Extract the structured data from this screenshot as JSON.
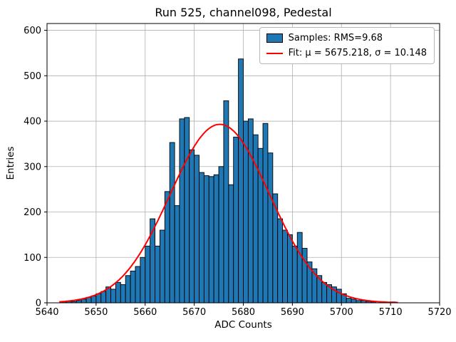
{
  "chart_data": {
    "type": "bar",
    "subtype": "histogram",
    "title": "Run 525, channel098, Pedestal",
    "xlabel": "ADC Counts",
    "ylabel": "Entries",
    "xlim": [
      5640,
      5720
    ],
    "ylim": [
      0,
      615
    ],
    "x_ticks": [
      5640,
      5650,
      5660,
      5670,
      5680,
      5690,
      5700,
      5710,
      5720
    ],
    "y_ticks": [
      0,
      100,
      200,
      300,
      400,
      500,
      600
    ],
    "grid": true,
    "legend_position": "upper right",
    "legend": [
      "Samples: RMS=9.68",
      "Fit: μ = 5675.218, σ = 10.148"
    ],
    "bar_color": "#1f77b4",
    "bar_edge_color": "#000000",
    "fit_color": "#ff0000",
    "grid_color": "#b0b0b0",
    "bin_width": 1,
    "bins_start": 5643,
    "counts": [
      2,
      3,
      3,
      5,
      8,
      12,
      15,
      20,
      25,
      35,
      30,
      45,
      40,
      60,
      70,
      80,
      100,
      125,
      185,
      125,
      160,
      245,
      353,
      214,
      405,
      408,
      337,
      325,
      287,
      280,
      278,
      282,
      300,
      445,
      260,
      365,
      537,
      400,
      405,
      370,
      340,
      395,
      330,
      240,
      185,
      160,
      150,
      125,
      155,
      120,
      90,
      75,
      60,
      45,
      40,
      35,
      30,
      20,
      10,
      8,
      5,
      5,
      3,
      2,
      0,
      0,
      0,
      2
    ],
    "fit": {
      "mu": 5675.218,
      "sigma": 10.148,
      "amplitude": 393,
      "rms": 9.68,
      "range": [
        5642.5,
        5711.5
      ]
    }
  }
}
